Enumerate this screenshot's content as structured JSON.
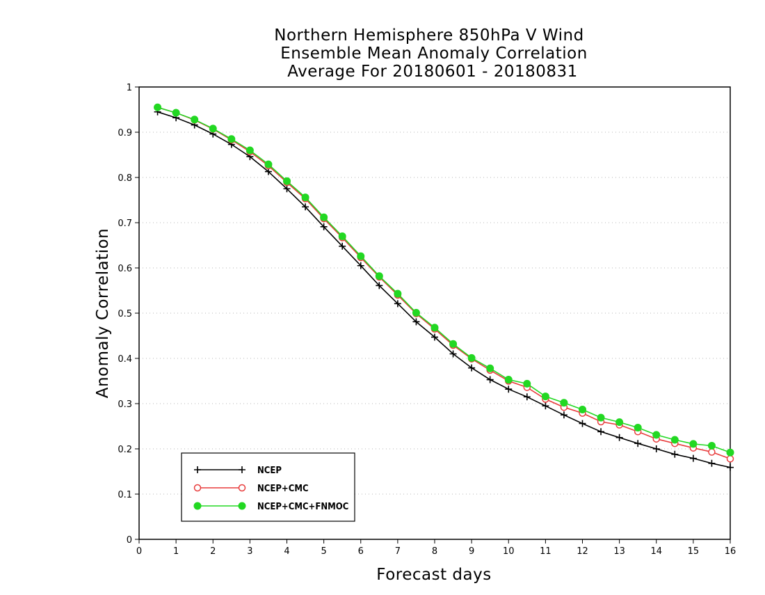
{
  "chart_data": {
    "type": "line",
    "title_lines": [
      "Northern Hemisphere 850hPa V Wind",
      "Ensemble Mean Anomaly Correlation",
      "Average For 20180601 - 20180831"
    ],
    "xlabel": "Forecast days",
    "ylabel": "Anomaly Correlation",
    "xlim": [
      0,
      16
    ],
    "ylim": [
      0,
      1
    ],
    "x_ticks": [
      0,
      1,
      2,
      3,
      4,
      5,
      6,
      7,
      8,
      9,
      10,
      11,
      12,
      13,
      14,
      15,
      16
    ],
    "y_ticks": [
      0,
      0.1,
      0.2,
      0.3,
      0.4,
      0.5,
      0.6,
      0.7,
      0.8,
      0.9,
      1
    ],
    "x_tick_labels": [
      "0",
      "1",
      "2",
      "3",
      "4",
      "5",
      "6",
      "7",
      "8",
      "9",
      "10",
      "11",
      "12",
      "13",
      "14",
      "15",
      "16"
    ],
    "y_tick_labels": [
      "0",
      "0.1",
      "0.2",
      "0.3",
      "0.4",
      "0.5",
      "0.6",
      "0.7",
      "0.8",
      "0.9",
      "1"
    ],
    "grid": "horizontal dotted",
    "legend_position": "bottom-left",
    "x": [
      0.5,
      1,
      1.5,
      2,
      2.5,
      3,
      3.5,
      4,
      4.5,
      5,
      5.5,
      6,
      6.5,
      7,
      7.5,
      8,
      8.5,
      9,
      9.5,
      10,
      10.5,
      11,
      11.5,
      12,
      12.5,
      13,
      13.5,
      14,
      14.5,
      15,
      15.5,
      16
    ],
    "series": [
      {
        "name": "NCEP",
        "color": "#000000",
        "marker": "plus",
        "values": [
          0.945,
          0.932,
          0.916,
          0.896,
          0.873,
          0.846,
          0.813,
          0.775,
          0.735,
          0.691,
          0.648,
          0.605,
          0.561,
          0.521,
          0.481,
          0.447,
          0.41,
          0.379,
          0.353,
          0.332,
          0.315,
          0.295,
          0.275,
          0.256,
          0.238,
          0.225,
          0.212,
          0.2,
          0.188,
          0.179,
          0.168,
          0.159
        ]
      },
      {
        "name": "NCEP+CMC",
        "color": "#e83c3c",
        "marker": "circle-open",
        "values": [
          0.955,
          0.943,
          0.927,
          0.907,
          0.883,
          0.857,
          0.826,
          0.789,
          0.753,
          0.709,
          0.667,
          0.623,
          0.58,
          0.54,
          0.499,
          0.465,
          0.429,
          0.399,
          0.374,
          0.35,
          0.336,
          0.31,
          0.292,
          0.279,
          0.26,
          0.253,
          0.238,
          0.222,
          0.212,
          0.202,
          0.193,
          0.178
        ]
      },
      {
        "name": "NCEP+CMC+FNMOC",
        "color": "#22d822",
        "marker": "circle-filled",
        "values": [
          0.955,
          0.943,
          0.928,
          0.908,
          0.885,
          0.86,
          0.829,
          0.792,
          0.756,
          0.712,
          0.67,
          0.626,
          0.582,
          0.543,
          0.501,
          0.468,
          0.432,
          0.401,
          0.378,
          0.353,
          0.344,
          0.316,
          0.302,
          0.287,
          0.269,
          0.259,
          0.247,
          0.231,
          0.22,
          0.211,
          0.207,
          0.192
        ]
      }
    ]
  }
}
